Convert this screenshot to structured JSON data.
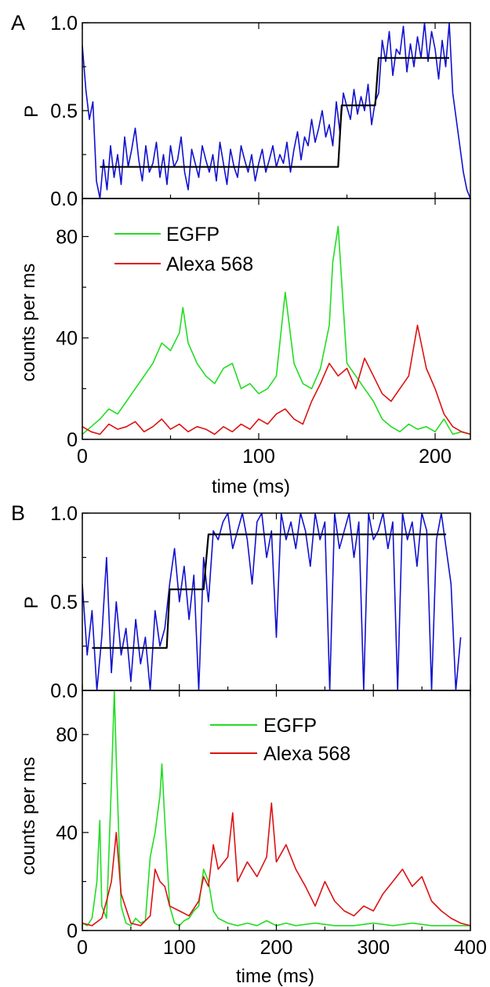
{
  "colors": {
    "p_trace": "#1010d0",
    "step_fit": "#000000",
    "egfp": "#22dd22",
    "alexa": "#dd1111"
  },
  "chart_data": [
    {
      "panel": "A",
      "type": "line",
      "role": "P",
      "ylabel": "P",
      "ylim": [
        0,
        1
      ],
      "yticks": [
        "0.0",
        "0.5",
        "1.0"
      ],
      "xlim": [
        0,
        220
      ],
      "series": [
        {
          "color_key": "p_trace",
          "x": [
            0,
            2,
            4,
            6,
            8,
            10,
            12,
            14,
            16,
            18,
            20,
            22,
            24,
            26,
            28,
            30,
            32,
            34,
            36,
            38,
            40,
            42,
            44,
            46,
            48,
            50,
            52,
            54,
            56,
            58,
            60,
            62,
            64,
            66,
            68,
            70,
            72,
            74,
            76,
            78,
            80,
            82,
            84,
            86,
            88,
            90,
            92,
            94,
            96,
            98,
            100,
            102,
            104,
            106,
            108,
            110,
            112,
            114,
            116,
            118,
            120,
            122,
            124,
            126,
            128,
            130,
            132,
            134,
            136,
            138,
            140,
            142,
            144,
            146,
            148,
            150,
            152,
            154,
            156,
            158,
            160,
            162,
            164,
            166,
            168,
            170,
            172,
            174,
            176,
            178,
            180,
            182,
            184,
            186,
            188,
            190,
            192,
            194,
            196,
            198,
            200,
            202,
            204,
            206,
            208,
            210,
            212,
            214,
            216,
            218,
            220
          ],
          "y": [
            0.87,
            0.62,
            0.45,
            0.55,
            0.1,
            0.0,
            0.22,
            0.05,
            0.3,
            0.12,
            0.25,
            0.08,
            0.35,
            0.18,
            0.28,
            0.4,
            0.22,
            0.1,
            0.3,
            0.15,
            0.2,
            0.32,
            0.12,
            0.25,
            0.08,
            0.3,
            0.18,
            0.22,
            0.35,
            0.15,
            0.05,
            0.28,
            0.2,
            0.12,
            0.3,
            0.22,
            0.15,
            0.25,
            0.1,
            0.32,
            0.2,
            0.08,
            0.28,
            0.18,
            0.12,
            0.3,
            0.22,
            0.15,
            0.25,
            0.1,
            0.2,
            0.28,
            0.15,
            0.22,
            0.3,
            0.18,
            0.25,
            0.2,
            0.32,
            0.15,
            0.28,
            0.38,
            0.22,
            0.35,
            0.3,
            0.45,
            0.32,
            0.4,
            0.5,
            0.35,
            0.42,
            0.3,
            0.55,
            0.38,
            0.6,
            0.52,
            0.45,
            0.62,
            0.48,
            0.58,
            0.5,
            0.65,
            0.42,
            0.55,
            0.6,
            0.9,
            0.78,
            0.95,
            0.7,
            0.85,
            0.82,
            0.98,
            0.72,
            0.88,
            0.75,
            0.92,
            0.8,
            1.0,
            0.78,
            0.95,
            0.85,
            0.68,
            0.9,
            0.75,
            1.0,
            0.6,
            0.45,
            0.3,
            0.15,
            0.05,
            0.0
          ]
        },
        {
          "color_key": "step_fit",
          "x": [
            10,
            145,
            145,
            147,
            147,
            166,
            166,
            168,
            168,
            208
          ],
          "y": [
            0.18,
            0.18,
            0.18,
            0.53,
            0.53,
            0.53,
            0.53,
            0.8,
            0.8,
            0.8
          ]
        }
      ]
    },
    {
      "panel": "A",
      "type": "line",
      "role": "counts",
      "xlabel": "time (ms)",
      "ylabel": "counts per ms",
      "xlim": [
        0,
        220
      ],
      "ylim": [
        0,
        95
      ],
      "xticks": [
        "0",
        "100",
        "200"
      ],
      "yticks": [
        "0",
        "40",
        "80"
      ],
      "legend": [
        "EGFP",
        "Alexa 568"
      ],
      "series": [
        {
          "name": "EGFP",
          "color_key": "egfp",
          "x": [
            0,
            5,
            10,
            15,
            20,
            25,
            30,
            35,
            40,
            45,
            50,
            55,
            57,
            60,
            65,
            70,
            75,
            80,
            85,
            90,
            95,
            100,
            105,
            110,
            115,
            120,
            125,
            130,
            135,
            140,
            142,
            145,
            150,
            155,
            160,
            165,
            170,
            175,
            180,
            185,
            190,
            195,
            200,
            205,
            210,
            215,
            220
          ],
          "y": [
            2,
            5,
            8,
            12,
            10,
            15,
            20,
            25,
            30,
            38,
            35,
            42,
            52,
            38,
            30,
            25,
            22,
            28,
            30,
            20,
            22,
            18,
            20,
            25,
            58,
            30,
            22,
            20,
            28,
            45,
            70,
            84,
            30,
            25,
            20,
            15,
            8,
            5,
            3,
            6,
            4,
            5,
            3,
            8,
            2,
            3,
            2
          ]
        },
        {
          "name": "Alexa 568",
          "color_key": "alexa",
          "x": [
            0,
            5,
            10,
            15,
            20,
            25,
            30,
            35,
            40,
            45,
            50,
            55,
            60,
            65,
            70,
            75,
            80,
            85,
            90,
            95,
            100,
            105,
            110,
            115,
            120,
            125,
            130,
            135,
            140,
            145,
            150,
            155,
            160,
            165,
            170,
            175,
            180,
            185,
            190,
            195,
            200,
            205,
            210,
            215,
            220
          ],
          "y": [
            5,
            3,
            2,
            6,
            4,
            5,
            7,
            3,
            5,
            8,
            4,
            6,
            3,
            5,
            4,
            2,
            5,
            3,
            6,
            4,
            8,
            6,
            10,
            12,
            8,
            6,
            15,
            22,
            30,
            25,
            28,
            20,
            32,
            25,
            18,
            15,
            20,
            25,
            45,
            28,
            20,
            10,
            5,
            3,
            2
          ]
        }
      ]
    },
    {
      "panel": "B",
      "type": "line",
      "role": "P",
      "ylabel": "P",
      "ylim": [
        0,
        1
      ],
      "yticks": [
        "0.0",
        "0.5",
        "1.0"
      ],
      "xlim": [
        0,
        400
      ],
      "series": [
        {
          "color_key": "p_trace",
          "x": [
            0,
            5,
            10,
            15,
            20,
            25,
            30,
            35,
            40,
            45,
            50,
            55,
            60,
            65,
            70,
            75,
            80,
            85,
            90,
            95,
            100,
            105,
            110,
            115,
            120,
            125,
            130,
            135,
            140,
            145,
            150,
            155,
            160,
            165,
            170,
            175,
            180,
            185,
            190,
            195,
            200,
            205,
            210,
            215,
            220,
            225,
            230,
            235,
            240,
            245,
            250,
            255,
            260,
            265,
            270,
            275,
            280,
            285,
            290,
            295,
            300,
            305,
            310,
            315,
            320,
            325,
            330,
            335,
            340,
            345,
            350,
            355,
            360,
            365,
            370,
            375,
            380,
            385,
            390
          ],
          "y": [
            0.6,
            0.2,
            0.45,
            0.0,
            0.3,
            0.75,
            0.1,
            0.5,
            0.2,
            0.35,
            0.05,
            0.4,
            0.15,
            0.3,
            0.0,
            0.45,
            0.25,
            0.35,
            0.6,
            0.8,
            0.5,
            0.7,
            0.4,
            0.65,
            0.0,
            0.75,
            0.5,
            0.9,
            0.85,
            0.95,
            1.0,
            0.8,
            0.9,
            1.0,
            0.85,
            0.6,
            0.95,
            1.0,
            0.75,
            0.9,
            0.3,
            1.0,
            0.85,
            0.95,
            0.8,
            1.0,
            0.9,
            0.7,
            1.0,
            0.85,
            0.95,
            0.0,
            1.0,
            0.8,
            0.9,
            1.0,
            0.75,
            0.95,
            0.0,
            1.0,
            0.85,
            0.9,
            1.0,
            0.8,
            0.95,
            0.0,
            1.0,
            0.85,
            0.95,
            0.7,
            1.0,
            0.9,
            0.0,
            0.85,
            1.0,
            0.8,
            0.6,
            0.0,
            0.3
          ]
        },
        {
          "color_key": "step_fit",
          "x": [
            10,
            87,
            87,
            90,
            90,
            125,
            125,
            130,
            130,
            375
          ],
          "y": [
            0.24,
            0.24,
            0.24,
            0.57,
            0.57,
            0.57,
            0.57,
            0.88,
            0.88,
            0.88
          ]
        }
      ]
    },
    {
      "panel": "B",
      "type": "line",
      "role": "counts",
      "xlabel": "time (ms)",
      "ylabel": "counts per ms",
      "xlim": [
        0,
        400
      ],
      "ylim": [
        0,
        98
      ],
      "xticks": [
        "0",
        "100",
        "200",
        "300",
        "400"
      ],
      "yticks": [
        "0",
        "40",
        "80"
      ],
      "legend": [
        "EGFP",
        "Alexa 568"
      ],
      "series": [
        {
          "name": "EGFP",
          "color_key": "egfp",
          "x": [
            0,
            5,
            10,
            15,
            18,
            20,
            25,
            30,
            33,
            35,
            40,
            45,
            50,
            55,
            60,
            65,
            70,
            75,
            80,
            82,
            85,
            90,
            95,
            100,
            105,
            110,
            115,
            120,
            125,
            130,
            135,
            140,
            150,
            160,
            170,
            180,
            190,
            200,
            210,
            220,
            240,
            260,
            280,
            300,
            320,
            340,
            360,
            380,
            400
          ],
          "y": [
            3,
            2,
            5,
            20,
            45,
            10,
            5,
            60,
            98,
            70,
            10,
            3,
            2,
            5,
            3,
            4,
            30,
            40,
            55,
            68,
            45,
            10,
            3,
            2,
            4,
            5,
            8,
            10,
            25,
            20,
            8,
            5,
            3,
            2,
            3,
            2,
            4,
            2,
            3,
            2,
            3,
            2,
            2,
            3,
            2,
            3,
            2,
            2,
            2
          ]
        },
        {
          "name": "Alexa 568",
          "color_key": "alexa",
          "x": [
            0,
            10,
            20,
            25,
            30,
            35,
            40,
            50,
            60,
            70,
            75,
            80,
            85,
            90,
            100,
            110,
            120,
            125,
            130,
            135,
            140,
            150,
            155,
            160,
            170,
            180,
            190,
            195,
            200,
            210,
            220,
            230,
            240,
            250,
            260,
            270,
            280,
            290,
            300,
            310,
            320,
            330,
            340,
            350,
            360,
            370,
            380,
            390,
            400
          ],
          "y": [
            3,
            2,
            5,
            12,
            20,
            40,
            15,
            3,
            2,
            6,
            25,
            20,
            18,
            10,
            8,
            6,
            12,
            22,
            18,
            35,
            25,
            30,
            48,
            20,
            28,
            22,
            30,
            52,
            28,
            35,
            25,
            18,
            10,
            20,
            12,
            8,
            6,
            10,
            8,
            15,
            20,
            25,
            18,
            22,
            12,
            8,
            5,
            3,
            2
          ]
        }
      ]
    }
  ],
  "labels": {
    "panel_a": "A",
    "panel_b": "B",
    "legend_a_egfp": "EGFP",
    "legend_a_alexa": "Alexa 568",
    "legend_b_egfp": "EGFP",
    "legend_b_alexa": "Alexa 568"
  }
}
